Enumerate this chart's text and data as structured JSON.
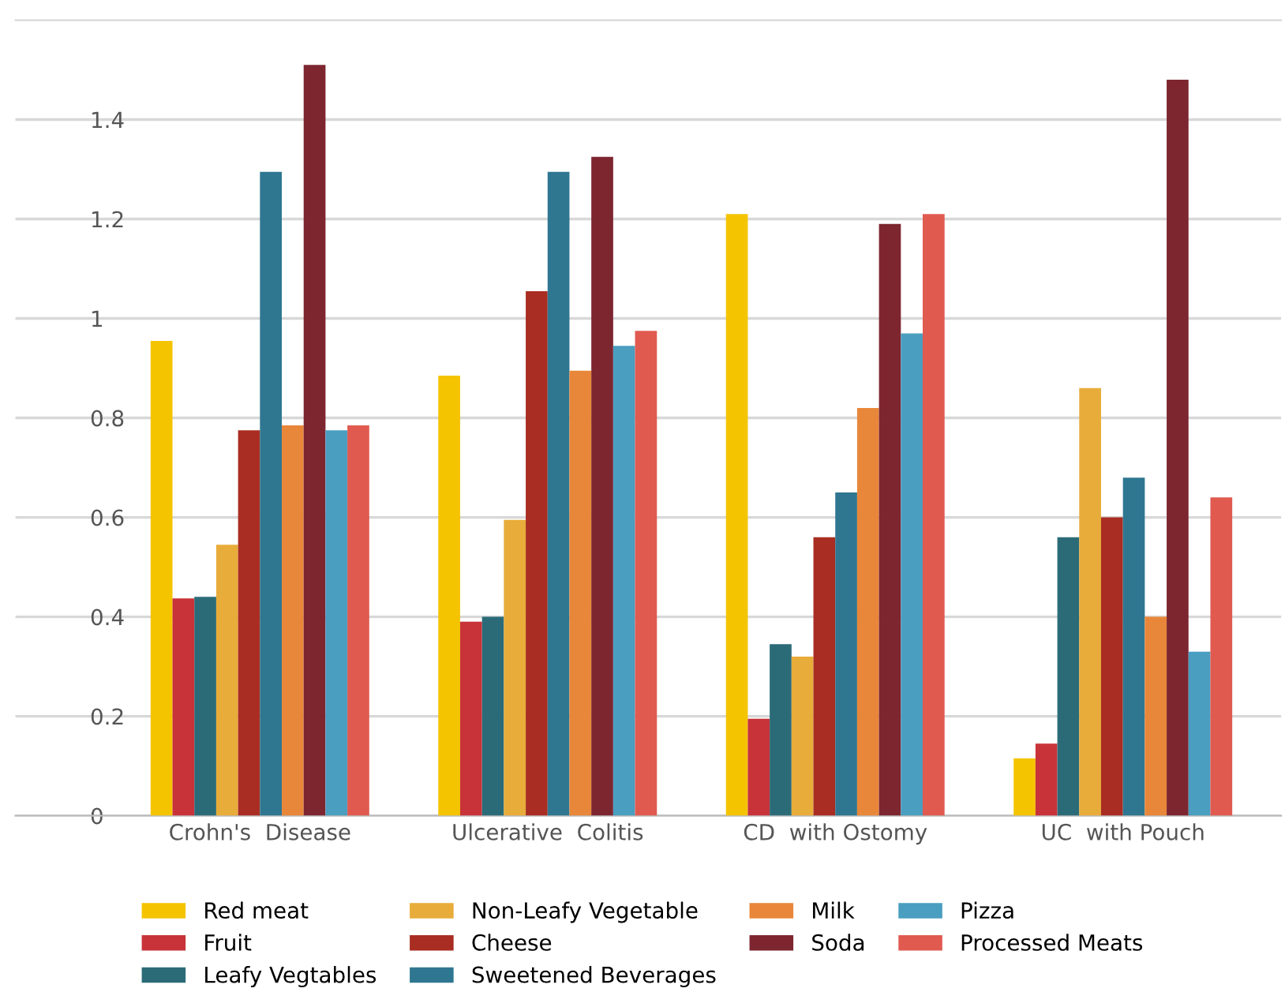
{
  "chart_data": {
    "type": "bar",
    "categories": [
      "Crohn's  Disease",
      "Ulcerative  Colitis",
      "CD  with Ostomy",
      "UC  with Pouch"
    ],
    "series": [
      {
        "name": "Red meat",
        "color": "#f5c400",
        "values": [
          0.955,
          0.885,
          1.21,
          0.115
        ]
      },
      {
        "name": "Fruit",
        "color": "#c8333a",
        "values": [
          0.437,
          0.39,
          0.195,
          0.145
        ]
      },
      {
        "name": "Leafy Vegtables",
        "color": "#2b6b78",
        "values": [
          0.44,
          0.4,
          0.345,
          0.56
        ]
      },
      {
        "name": "Non-Leafy Vegetable",
        "color": "#e8ac3a",
        "values": [
          0.545,
          0.595,
          0.32,
          0.86
        ]
      },
      {
        "name": "Cheese",
        "color": "#a92d22",
        "values": [
          0.775,
          1.055,
          0.56,
          0.6
        ]
      },
      {
        "name": "Sweetened Beverages",
        "color": "#2f7791",
        "values": [
          1.295,
          1.295,
          0.65,
          0.68
        ]
      },
      {
        "name": "Milk",
        "color": "#e8873a",
        "values": [
          0.785,
          0.895,
          0.82,
          0.4
        ]
      },
      {
        "name": "Soda",
        "color": "#7d2630",
        "values": [
          1.51,
          1.325,
          1.19,
          1.48
        ]
      },
      {
        "name": "Pizza",
        "color": "#4a9ec0",
        "values": [
          0.775,
          0.945,
          0.97,
          0.33
        ]
      },
      {
        "name": "Processed Meats",
        "color": "#e05a50",
        "values": [
          0.785,
          0.975,
          1.21,
          0.64
        ]
      }
    ],
    "ylim": [
      0,
      1.6
    ],
    "yticks": [
      0,
      0.2,
      0.4,
      0.6,
      0.8,
      1,
      1.2,
      1.4
    ],
    "grid": "y",
    "legend": "bottom"
  }
}
